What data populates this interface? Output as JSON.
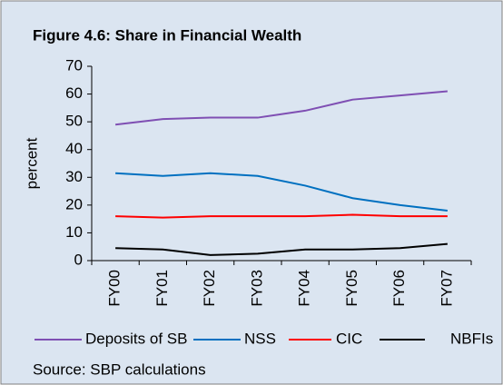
{
  "chart_data": {
    "type": "line",
    "title": "Figure 4.6: Share in Financial Wealth",
    "y_label": "percent",
    "source": "Source: SBP calculations",
    "categories": [
      "FY00",
      "FY01",
      "FY02",
      "FY03",
      "FY04",
      "FY05",
      "FY06",
      "FY07"
    ],
    "series": [
      {
        "name": "Deposits of SB",
        "color": "#7f4fb3",
        "values": [
          49,
          51,
          51.5,
          51.5,
          54,
          58,
          59.5,
          61
        ]
      },
      {
        "name": "NSS",
        "color": "#0070c0",
        "values": [
          31.5,
          30.5,
          31.5,
          30.5,
          27,
          22.5,
          20,
          18
        ]
      },
      {
        "name": "CIC",
        "color": "#ff0000",
        "values": [
          16,
          15.5,
          16,
          16,
          16,
          16.5,
          16,
          16
        ]
      },
      {
        "name": "NBFIs",
        "color": "#000000",
        "values": [
          4.5,
          4,
          2,
          2.5,
          4,
          4,
          4.5,
          6
        ]
      }
    ],
    "ylim": [
      0,
      70
    ],
    "yticks": [
      0,
      10,
      20,
      30,
      40,
      50,
      60,
      70
    ]
  }
}
